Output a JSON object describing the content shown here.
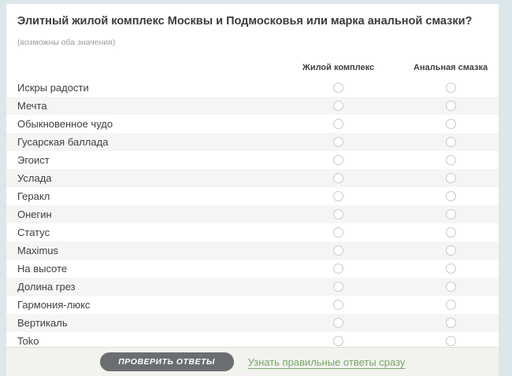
{
  "quiz": {
    "title": "Элитный жилой комплекс Москвы и Подмосковья или марка анальной смазки?",
    "subtitle": "(возможны оба значения)",
    "columns": {
      "complex": "Жилой комплекс",
      "lubricant": "Анальная смазка"
    },
    "rows": [
      "Искры радости",
      "Мечта",
      "Обыкновенное чудо",
      "Гусарская баллада",
      "Эгоист",
      "Услада",
      "Геракл",
      "Онегин",
      "Статус",
      "Maximus",
      "На высоте",
      "Долина грез",
      "Гармония-люкс",
      "Вертикаль",
      "Toko"
    ],
    "footer": {
      "check_button_label": "ПРОВЕРИТЬ ОТВЕТЫ",
      "reveal_link_label": "Узнать правильные ответы сразу"
    },
    "colors": {
      "page_background": "#dbe7ea",
      "card_background": "#ffffff",
      "alt_row_background": "#f5f5f3",
      "button_gray": "#6b6e70",
      "link_green": "#7ba56b"
    }
  }
}
